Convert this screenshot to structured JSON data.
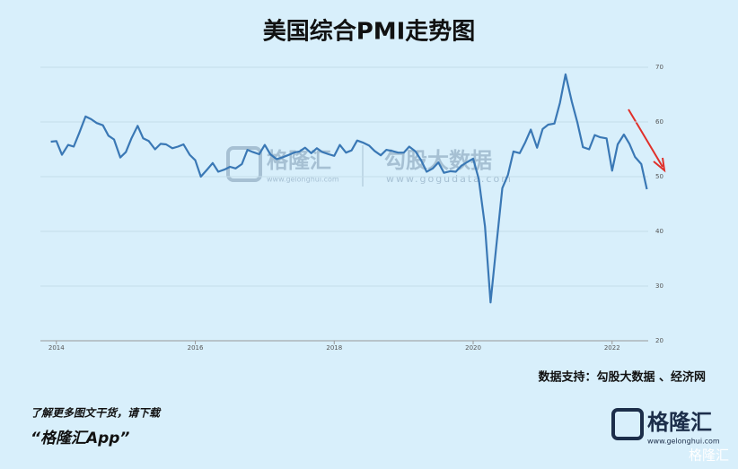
{
  "chart_data": {
    "type": "line",
    "title": "美国综合PMI走势图",
    "x": [
      2013.92,
      2014.0,
      2014.08,
      2014.17,
      2014.25,
      2014.33,
      2014.42,
      2014.5,
      2014.58,
      2014.67,
      2014.75,
      2014.83,
      2014.92,
      2015.0,
      2015.08,
      2015.17,
      2015.25,
      2015.33,
      2015.42,
      2015.5,
      2015.58,
      2015.67,
      2015.75,
      2015.83,
      2015.92,
      2016.0,
      2016.08,
      2016.17,
      2016.25,
      2016.33,
      2016.42,
      2016.5,
      2016.58,
      2016.67,
      2016.75,
      2016.83,
      2016.92,
      2017.0,
      2017.08,
      2017.17,
      2017.25,
      2017.33,
      2017.42,
      2017.5,
      2017.58,
      2017.67,
      2017.75,
      2017.83,
      2017.92,
      2018.0,
      2018.08,
      2018.17,
      2018.25,
      2018.33,
      2018.42,
      2018.5,
      2018.58,
      2018.67,
      2018.75,
      2018.83,
      2018.92,
      2019.0,
      2019.08,
      2019.17,
      2019.25,
      2019.33,
      2019.42,
      2019.5,
      2019.58,
      2019.67,
      2019.75,
      2019.83,
      2019.92,
      2020.0,
      2020.08,
      2020.17,
      2020.25,
      2020.33,
      2020.42,
      2020.5,
      2020.58,
      2020.67,
      2020.75,
      2020.83,
      2020.92,
      2021.0,
      2021.08,
      2021.17,
      2021.25,
      2021.33,
      2021.42,
      2021.5,
      2021.58,
      2021.67,
      2021.75,
      2021.83,
      2021.92,
      2022.0,
      2022.08,
      2022.17,
      2022.25,
      2022.33,
      2022.42,
      2022.5
    ],
    "series": [
      {
        "color": "#3a78b5",
        "values": [
          56.4,
          56.5,
          54,
          55.8,
          55.5,
          58,
          61,
          60.5,
          59.8,
          59.4,
          57.5,
          56.8,
          53.5,
          54.5,
          57,
          59.3,
          57,
          56.5,
          55,
          56,
          55.9,
          55.2,
          55.5,
          55.9,
          54,
          53,
          50,
          51.3,
          52.5,
          50.9,
          51.3,
          51.8,
          51.5,
          52.3,
          54.9,
          54.5,
          54.1,
          55.8,
          54.1,
          53.2,
          53.5,
          53.9,
          54.4,
          54.6,
          55.3,
          54.3,
          55.2,
          54.5,
          54.1,
          53.8,
          55.8,
          54.4,
          54.8,
          56.6,
          56.2,
          55.7,
          54.7,
          53.9,
          54.9,
          54.7,
          54.4,
          54.4,
          55.5,
          54.6,
          53,
          50.9,
          51.5,
          52.6,
          50.7,
          51,
          50.9,
          52,
          52.7,
          53.3,
          49.6,
          40.9,
          27,
          37,
          47.9,
          50.3,
          54.6,
          54.3,
          56.3,
          58.6,
          55.3,
          58.7,
          59.5,
          59.7,
          63.5,
          68.7,
          63.7,
          59.9,
          55.4,
          55,
          57.6,
          57.2,
          57,
          51.1,
          55.9,
          57.7,
          56,
          53.6,
          52.3,
          47.7
        ]
      }
    ],
    "xlim": [
      2013.77,
      2022.52
    ],
    "xticks": [
      2014,
      2016,
      2018,
      2020,
      2022
    ],
    "ylim": [
      20,
      70
    ],
    "yticks": [
      20,
      30,
      40,
      50,
      60,
      70
    ],
    "grid": true,
    "source": "数据支持：勾股大数据 、经济网"
  },
  "watermark": {
    "brand": "格隆汇",
    "brand_url": "www.gelonghui.com",
    "data_brand": "勾股大数据",
    "data_url": "www.gogudata.com"
  },
  "footer": {
    "prompt": "了解更多图文干货，请下载",
    "app": "“格隆汇App”",
    "logo": "格隆汇",
    "logo_url": "www.gelonghui.com",
    "badge": "格隆汇"
  }
}
